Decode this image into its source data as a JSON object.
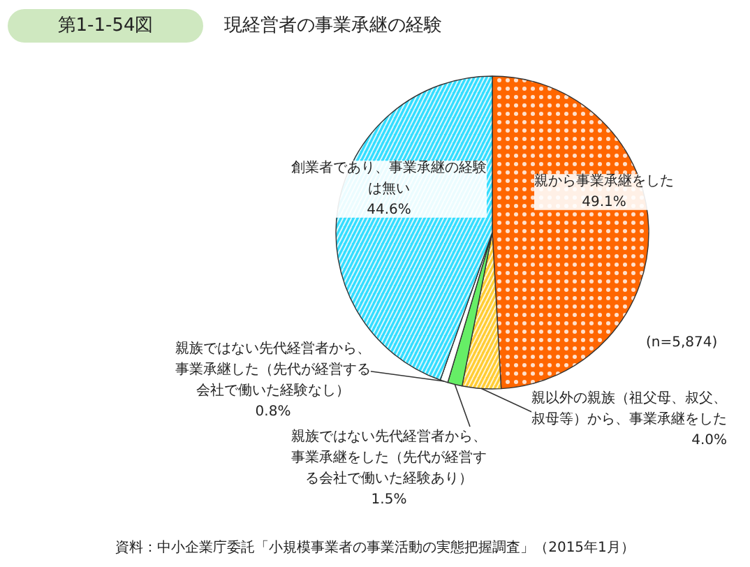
{
  "chart_data": {
    "type": "pie",
    "title": "現経営者の事業承継の経験",
    "subtitle": "第1-1-54図",
    "categories": [
      "親から事業承継をした",
      "親以外の親族（祖父母、叔父、叔母等）から、事業承継をした",
      "親族ではない先代経営者から、事業承継をした（先代が経営する会社で働いた経験あり）",
      "親族ではない先代経営者から、事業承継した（先代が経営する会社で働いた経験なし）",
      "創業者であり、事業承継の経験は無い"
    ],
    "values": [
      49.1,
      4.0,
      1.5,
      0.8,
      44.6
    ],
    "value_labels": [
      "49.1%",
      "4.0%",
      "1.5%",
      "0.8%",
      "44.6%"
    ],
    "colors": [
      "#ff6600",
      "#ffcc33",
      "#66ee66",
      "#ffffff",
      "#33ddff"
    ],
    "annotations": [
      "(n=5,874)",
      "資料：中小企業庁委託「小規模事業者の事業活動の実態把握調査」（2015年1月）"
    ]
  }
}
